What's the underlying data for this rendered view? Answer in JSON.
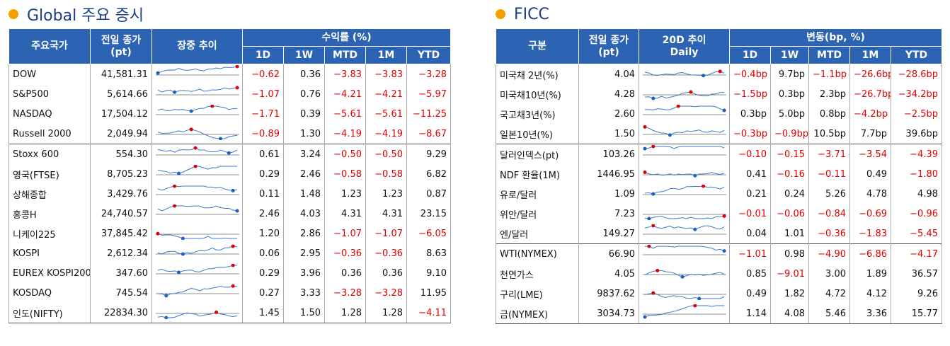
{
  "panels": [
    {
      "title": "Global 주요 증시",
      "header": [
        [
          "주요국가"
        ],
        [
          "전일 종가",
          "(pt)"
        ],
        [
          "장중 추이"
        ],
        [
          "수익률 (%)"
        ]
      ],
      "subheader": [
        "1D",
        "1W",
        "MTD",
        "1M",
        "YTD"
      ],
      "groups": [
        {
          "rows": [
            [
              "DOW",
              "41,581.31",
              "−0.62",
              "0.36",
              "−3.83",
              "−3.83",
              "−3.28"
            ],
            [
              "S&P500",
              "5,614.66",
              "−1.07",
              "0.76",
              "−4.21",
              "−4.21",
              "−5.97"
            ],
            [
              "NASDAQ",
              "17,504.12",
              "−1.71",
              "0.39",
              "−5.61",
              "−5.61",
              "−11.25"
            ],
            [
              "Russell 2000",
              "2,049.94",
              "−0.89",
              "1.30",
              "−4.19",
              "−4.19",
              "−8.67"
            ]
          ]
        },
        {
          "rows": [
            [
              "Stoxx 600",
              "554.30",
              "0.61",
              "3.24",
              "−0.50",
              "−0.50",
              "9.29"
            ],
            [
              "영국(FTSE)",
              "8,705.23",
              "0.29",
              "2.46",
              "−0.58",
              "−0.58",
              "6.82"
            ],
            [
              "상해종합",
              "3,429.76",
              "0.11",
              "1.48",
              "1.23",
              "1.23",
              "0.87"
            ],
            [
              "홍콩H",
              "24,740.57",
              "2.46",
              "4.03",
              "4.31",
              "4.31",
              "23.15"
            ],
            [
              "니케이225",
              "37,845.42",
              "1.20",
              "2.86",
              "−1.07",
              "−1.07",
              "−6.05"
            ],
            [
              "KOSPI",
              "2,612.34",
              "0.06",
              "2.95",
              "−0.36",
              "−0.36",
              "8.63"
            ],
            [
              "EUREX KOSPI200",
              "347.60",
              "0.29",
              "3.96",
              "0.36",
              "0.36",
              "9.10"
            ],
            [
              "KOSDAQ",
              "745.54",
              "0.27",
              "3.33",
              "−3.28",
              "−3.28",
              "11.95"
            ],
            [
              "인도(NIFTY)",
              "22834.30",
              "1.45",
              "1.50",
              "1.28",
              "1.28",
              "−4.11"
            ]
          ]
        }
      ]
    },
    {
      "title": "FICC",
      "header": [
        [
          "구분"
        ],
        [
          "전일 종가",
          "(pt)"
        ],
        [
          "20D 추이",
          "Daily"
        ],
        [
          "변동(bp, %)"
        ]
      ],
      "subheader": [
        "1D",
        "1W",
        "MTD",
        "1M",
        "YTD"
      ],
      "groups": [
        {
          "rows": [
            [
              "미국채 2년(%)",
              "4.04",
              "−0.4bp",
              "9.7bp",
              "−1.1bp",
              "−26.6bp",
              "−28.6bp"
            ],
            [
              "미국채10년(%)",
              "4.28",
              "−1.5bp",
              "0.3bp",
              "2.3bp",
              "−26.7bp",
              "−34.2bp"
            ],
            [
              "국고채3년(%)",
              "2.60",
              "0.3bp",
              "5.0bp",
              "0.8bp",
              "−4.2bp",
              "−2.5bp"
            ],
            [
              "일본10년(%)",
              "1.50",
              "−0.3bp",
              "−0.9bp",
              "10.5bp",
              "7.7bp",
              "39.6bp"
            ]
          ]
        },
        {
          "rows": [
            [
              "달러인덱스(pt)",
              "103.26",
              "−0.10",
              "−0.15",
              "−3.71",
              "−3.54",
              "−4.39"
            ],
            [
              "NDF 환율(1M)",
              "1446.95",
              "0.41",
              "−0.16",
              "−0.11",
              "0.49",
              "−1.80"
            ],
            [
              "유로/달러",
              "1.09",
              "0.21",
              "0.24",
              "5.26",
              "4.78",
              "4.98"
            ],
            [
              "위안/달러",
              "7.23",
              "−0.01",
              "−0.06",
              "−0.84",
              "−0.69",
              "−0.96"
            ],
            [
              "엔/달러",
              "149.27",
              "0.04",
              "1.01",
              "−0.36",
              "−1.83",
              "−5.45"
            ]
          ]
        },
        {
          "rows": [
            [
              "WTI(NYMEX)",
              "66.90",
              "−1.01",
              "0.98",
              "−4.90",
              "−6.86",
              "−4.17"
            ],
            [
              "천연가스",
              "4.05",
              "0.85",
              "−9.01",
              "3.00",
              "1.89",
              "36.57"
            ],
            [
              "구리(LME)",
              "9837.62",
              "0.49",
              "1.82",
              "4.72",
              "4.12",
              "9.26"
            ],
            [
              "금(NYMEX)",
              "3034.73",
              "1.14",
              "4.08",
              "5.46",
              "3.36",
              "15.77"
            ]
          ]
        }
      ]
    }
  ]
}
